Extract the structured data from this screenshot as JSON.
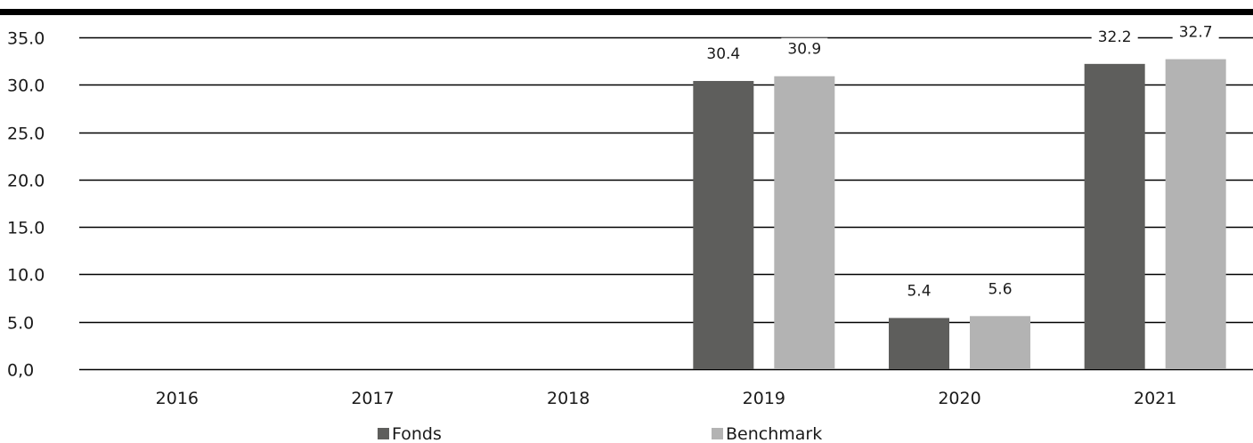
{
  "chart_data": {
    "type": "bar",
    "categories": [
      "2016",
      "2017",
      "2018",
      "2019",
      "2020",
      "2021"
    ],
    "series": [
      {
        "name": "Fonds",
        "color": "#5e5e5c",
        "values": [
          null,
          null,
          null,
          30.4,
          5.4,
          32.2
        ],
        "labels": [
          "",
          "",
          "",
          "30.4",
          "5.4",
          "32.2"
        ]
      },
      {
        "name": "Benchmark",
        "color": "#b3b3b3",
        "values": [
          null,
          null,
          null,
          30.9,
          5.6,
          32.7
        ],
        "labels": [
          "",
          "",
          "",
          "30.9",
          "5.6",
          "32.7"
        ]
      }
    ],
    "y_ticks": [
      {
        "value": 0,
        "label": "0,0"
      },
      {
        "value": 5,
        "label": "5.0"
      },
      {
        "value": 10,
        "label": "10.0"
      },
      {
        "value": 15,
        "label": "15.0"
      },
      {
        "value": 20,
        "label": "20.0"
      },
      {
        "value": 25,
        "label": "25.0"
      },
      {
        "value": 30,
        "label": "30.0"
      },
      {
        "value": 35,
        "label": "35.0"
      }
    ],
    "ylim": [
      0,
      35
    ],
    "title": "",
    "xlabel": "",
    "ylabel": "",
    "grid": true,
    "legend_position": "bottom"
  }
}
